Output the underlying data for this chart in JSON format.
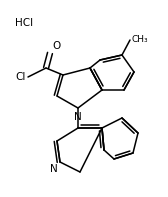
{
  "background_color": "#ffffff",
  "line_color": "#000000",
  "text_color": "#000000",
  "line_width": 1.1,
  "font_size": 7.5,
  "hcl_label": "HCl",
  "o_label": "O",
  "cl_label": "Cl",
  "n_indole_label": "N",
  "n_quinoline_label": "N",
  "ch3_label": "CH₃"
}
